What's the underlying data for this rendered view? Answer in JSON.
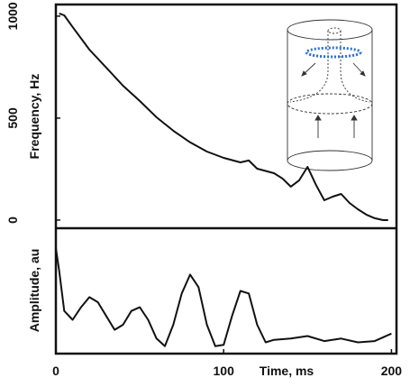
{
  "chart_data": [
    {
      "type": "line",
      "ylabel": "Frequency, Hz",
      "color": "#111111",
      "x": [
        2,
        5,
        10,
        20,
        30,
        40,
        50,
        60,
        70,
        80,
        90,
        100,
        110,
        115,
        120,
        130,
        135,
        140,
        145,
        150,
        155,
        160,
        165,
        170,
        175,
        180,
        185,
        190,
        195,
        198
      ],
      "values": [
        1013,
        1004,
        947,
        836,
        748,
        659,
        584,
        504,
        438,
        381,
        336,
        305,
        283,
        292,
        252,
        230,
        204,
        164,
        195,
        261,
        173,
        97,
        115,
        128,
        84,
        53,
        27,
        9,
        0,
        0
      ],
      "xlim": [
        0,
        203
      ],
      "ylim": [
        -40,
        1057
      ],
      "yticks": [
        0,
        500,
        1000
      ]
    },
    {
      "type": "line",
      "ylabel": "Amplitude, au",
      "xlabel": "Time, ms",
      "color": "#111111",
      "x": [
        0,
        2,
        5,
        10,
        15,
        20,
        25,
        30,
        35,
        40,
        45,
        50,
        55,
        60,
        65,
        70,
        75,
        80,
        85,
        90,
        95,
        100,
        105,
        110,
        115,
        120,
        125,
        130,
        140,
        150,
        160,
        170,
        180,
        190,
        200
      ],
      "values": [
        0.84,
        0.66,
        0.34,
        0.27,
        0.37,
        0.45,
        0.41,
        0.3,
        0.19,
        0.23,
        0.34,
        0.37,
        0.27,
        0.12,
        0.06,
        0.23,
        0.48,
        0.63,
        0.53,
        0.23,
        0.06,
        0.07,
        0.3,
        0.5,
        0.48,
        0.23,
        0.09,
        0.11,
        0.12,
        0.14,
        0.1,
        0.12,
        0.09,
        0.1,
        0.16
      ],
      "xlim": [
        0,
        203
      ],
      "ylim": [
        0,
        1
      ],
      "xticks": [
        0,
        100,
        200
      ]
    }
  ]
}
